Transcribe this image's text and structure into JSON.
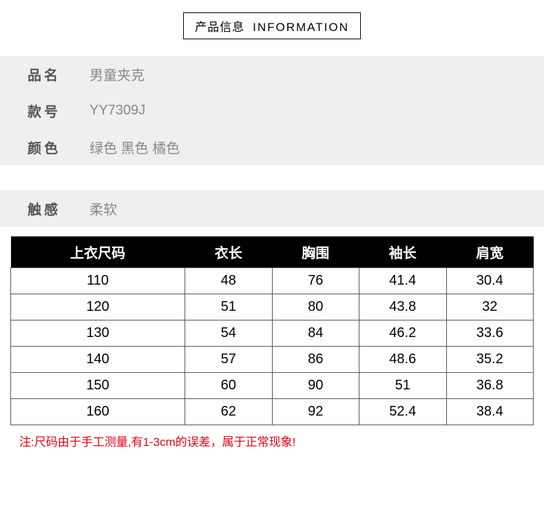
{
  "header": {
    "title_cn": "产品信息",
    "title_en": "INFORMATION"
  },
  "info1": [
    {
      "label": "品名",
      "value": "男童夹克"
    },
    {
      "label": "款号",
      "value": "YY7309J"
    },
    {
      "label": "颜色",
      "value": "绿色 黑色 橘色"
    }
  ],
  "info2": [
    {
      "label": "触感",
      "value": "柔软"
    }
  ],
  "sizeTable": {
    "columns": [
      "上衣尺码",
      "衣长",
      "胸围",
      "袖长",
      "肩宽"
    ],
    "rows": [
      [
        "110",
        "48",
        "76",
        "41.4",
        "30.4"
      ],
      [
        "120",
        "51",
        "80",
        "43.8",
        "32"
      ],
      [
        "130",
        "54",
        "84",
        "46.2",
        "33.6"
      ],
      [
        "140",
        "57",
        "86",
        "48.6",
        "35.2"
      ],
      [
        "150",
        "60",
        "90",
        "51",
        "36.8"
      ],
      [
        "160",
        "62",
        "92",
        "52.4",
        "38.4"
      ]
    ]
  },
  "note": "注:尺码由于手工测量,有1-3cm的误差，属于正常现象!"
}
